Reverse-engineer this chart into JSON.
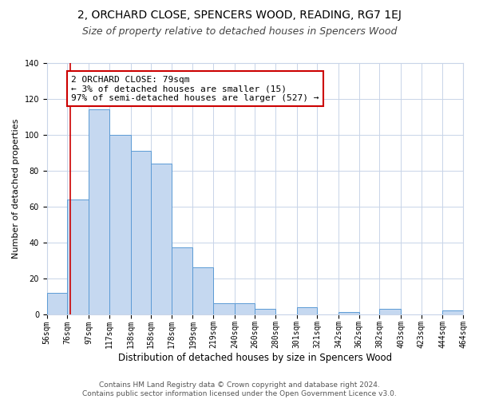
{
  "title": "2, ORCHARD CLOSE, SPENCERS WOOD, READING, RG7 1EJ",
  "subtitle": "Size of property relative to detached houses in Spencers Wood",
  "xlabel": "Distribution of detached houses by size in Spencers Wood",
  "ylabel": "Number of detached properties",
  "bin_edges": [
    56,
    76,
    97,
    117,
    138,
    158,
    178,
    199,
    219,
    240,
    260,
    280,
    301,
    321,
    342,
    362,
    382,
    403,
    423,
    444,
    464
  ],
  "bin_labels": [
    "56sqm",
    "76sqm",
    "97sqm",
    "117sqm",
    "138sqm",
    "158sqm",
    "178sqm",
    "199sqm",
    "219sqm",
    "240sqm",
    "260sqm",
    "280sqm",
    "301sqm",
    "321sqm",
    "342sqm",
    "362sqm",
    "382sqm",
    "403sqm",
    "423sqm",
    "444sqm",
    "464sqm"
  ],
  "counts": [
    12,
    64,
    114,
    100,
    91,
    84,
    37,
    26,
    6,
    6,
    3,
    0,
    4,
    0,
    1,
    0,
    3,
    0,
    0,
    2
  ],
  "bar_color": "#c5d8f0",
  "bar_edge_color": "#5b9bd5",
  "vline_x": 79,
  "vline_color": "#cc0000",
  "annotation_line1": "2 ORCHARD CLOSE: 79sqm",
  "annotation_line2": "← 3% of detached houses are smaller (15)",
  "annotation_line3": "97% of semi-detached houses are larger (527) →",
  "annotation_box_color": "#ffffff",
  "annotation_box_edge_color": "#cc0000",
  "ylim": [
    0,
    140
  ],
  "yticks": [
    0,
    20,
    40,
    60,
    80,
    100,
    120,
    140
  ],
  "grid_color": "#c8d4e8",
  "footer_text": "Contains HM Land Registry data © Crown copyright and database right 2024.\nContains public sector information licensed under the Open Government Licence v3.0.",
  "title_fontsize": 10,
  "subtitle_fontsize": 9,
  "xlabel_fontsize": 8.5,
  "ylabel_fontsize": 8,
  "tick_fontsize": 7,
  "annotation_fontsize": 8,
  "footer_fontsize": 6.5
}
